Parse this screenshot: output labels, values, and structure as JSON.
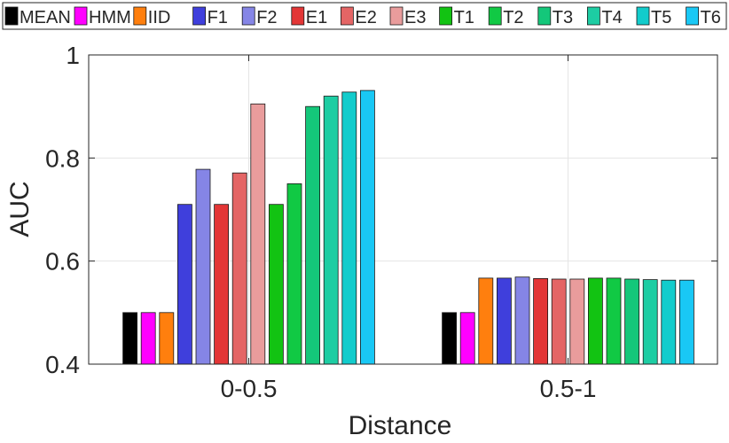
{
  "chart_data": {
    "type": "bar",
    "title": "",
    "xlabel": "Distance",
    "ylabel": "AUC",
    "categories": [
      "0-0.5",
      "0.5-1"
    ],
    "ylim": [
      0.4,
      1.0
    ],
    "yticks": [
      0.4,
      0.6,
      0.8,
      1
    ],
    "ytick_labels": [
      "0.4",
      "0.6",
      "0.8",
      "1"
    ],
    "grid": true,
    "legend_position": "top",
    "series": [
      {
        "name": "MEAN",
        "color": "#000000",
        "values": [
          0.5,
          0.5
        ]
      },
      {
        "name": "HMM",
        "color": "#ff00ff",
        "values": [
          0.5,
          0.5
        ]
      },
      {
        "name": "IID",
        "color": "#ff7f0e",
        "values": [
          0.5,
          0.567
        ]
      },
      {
        "name": "F1",
        "color": "#3f3fdc",
        "values": [
          0.71,
          0.567
        ]
      },
      {
        "name": "F2",
        "color": "#8585e6",
        "values": [
          0.778,
          0.569
        ]
      },
      {
        "name": "E1",
        "color": "#e33636",
        "values": [
          0.71,
          0.566
        ]
      },
      {
        "name": "E2",
        "color": "#e46565",
        "values": [
          0.771,
          0.565
        ]
      },
      {
        "name": "E3",
        "color": "#e99c9c",
        "values": [
          0.905,
          0.565
        ]
      },
      {
        "name": "T1",
        "color": "#12c312",
        "values": [
          0.71,
          0.567
        ]
      },
      {
        "name": "T2",
        "color": "#11c944",
        "values": [
          0.75,
          0.567
        ]
      },
      {
        "name": "T3",
        "color": "#14c77a",
        "values": [
          0.9,
          0.565
        ]
      },
      {
        "name": "T4",
        "color": "#1dcda3",
        "values": [
          0.92,
          0.564
        ]
      },
      {
        "name": "T5",
        "color": "#12cccc",
        "values": [
          0.928,
          0.563
        ]
      },
      {
        "name": "T6",
        "color": "#19c8f5",
        "values": [
          0.931,
          0.563
        ]
      }
    ]
  }
}
